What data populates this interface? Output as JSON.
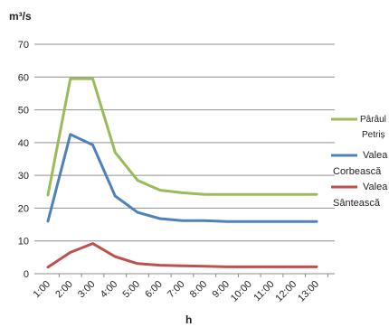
{
  "chart_data": {
    "type": "line",
    "title": "",
    "xlabel": "h",
    "ylabel": "m³/s",
    "ylim": [
      0,
      70
    ],
    "yticks": [
      0,
      10,
      20,
      30,
      40,
      50,
      60,
      70
    ],
    "grid": true,
    "legend_position": "right",
    "categories": [
      "1:00",
      "2:00",
      "3:00",
      "4:00",
      "5:00",
      "6:00",
      "7:00",
      "8:00",
      "9:00",
      "10:00",
      "11:00",
      "12:00",
      "13:00"
    ],
    "series": [
      {
        "name": "Pârâul Petriș",
        "color": "#9BBB59",
        "values": [
          24,
          59.5,
          59.5,
          37,
          28.5,
          25.5,
          24.7,
          24.2,
          24.2,
          24.2,
          24.2,
          24.2,
          24.2
        ]
      },
      {
        "name": "Valea Corbească",
        "color": "#4F81BD",
        "values": [
          16,
          42.5,
          39.3,
          23.7,
          18.7,
          16.8,
          16.2,
          16.2,
          15.9,
          15.9,
          15.9,
          15.9,
          15.9
        ]
      },
      {
        "name": "Valea Sântească",
        "color": "#C0504D",
        "values": [
          2,
          6.5,
          9.2,
          5.2,
          3.1,
          2.6,
          2.4,
          2.3,
          2.1,
          2.1,
          2.1,
          2.1,
          2.1
        ]
      }
    ]
  }
}
